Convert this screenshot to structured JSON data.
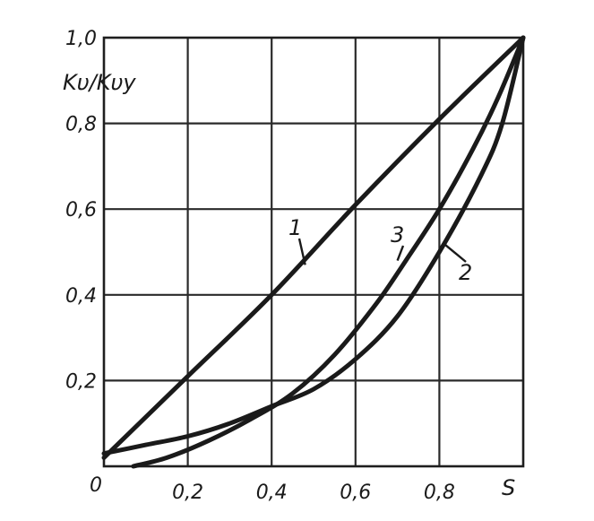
{
  "chart_data": {
    "type": "line",
    "xlabel": "S",
    "ylabel": "Kυ/Kυy",
    "xlim": [
      0,
      1.0
    ],
    "ylim": [
      0,
      1.0
    ],
    "x_ticks": [
      0.2,
      0.4,
      0.6,
      0.8
    ],
    "x_tick_labels": [
      "0,2",
      "0,4",
      "0,6",
      "0,8"
    ],
    "y_ticks": [
      0.2,
      0.4,
      0.6,
      0.8,
      1.0
    ],
    "y_tick_labels": [
      "0,2",
      "0,4",
      "0,6",
      "0,8",
      "1,0"
    ],
    "origin_label": "0",
    "grid": true,
    "series": [
      {
        "name": "1",
        "x": [
          0,
          0.2,
          0.4,
          0.6,
          0.8,
          1.0
        ],
        "y": [
          0.02,
          0.21,
          0.4,
          0.61,
          0.81,
          1.0
        ]
      },
      {
        "name": "2",
        "x": [
          0,
          0.1,
          0.2,
          0.3,
          0.4,
          0.5,
          0.6,
          0.7,
          0.8,
          0.9,
          0.95,
          1.0
        ],
        "y": [
          0.03,
          0.05,
          0.07,
          0.1,
          0.14,
          0.18,
          0.25,
          0.35,
          0.5,
          0.68,
          0.8,
          1.0
        ]
      },
      {
        "name": "3",
        "x": [
          0.07,
          0.15,
          0.25,
          0.35,
          0.45,
          0.55,
          0.65,
          0.72,
          0.8,
          0.88,
          0.94,
          1.0
        ],
        "y": [
          0.0,
          0.02,
          0.06,
          0.11,
          0.17,
          0.26,
          0.38,
          0.48,
          0.6,
          0.74,
          0.86,
          1.0
        ]
      }
    ]
  }
}
